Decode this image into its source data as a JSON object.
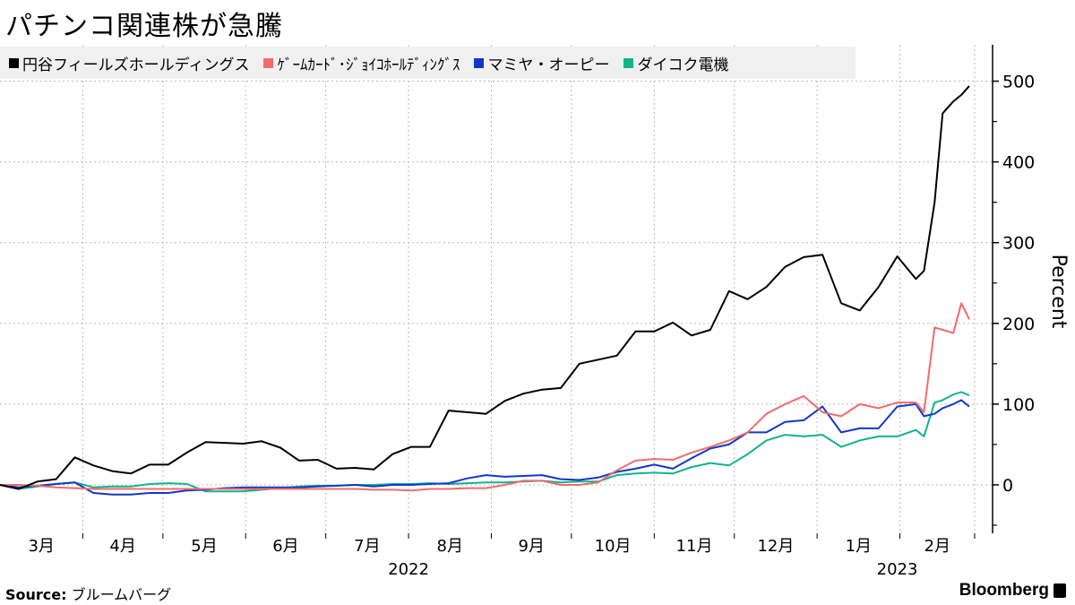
{
  "title": "パチンコ関連株が急騰",
  "source_label": "Source:",
  "source_text": "ブルームバーグ",
  "brand": "Bloomberg",
  "chart_data": {
    "type": "line",
    "title": "パチンコ関連株が急騰",
    "ylabel": "Percent",
    "ylim": [
      -60,
      545
    ],
    "yticks": [
      0,
      100,
      200,
      300,
      400,
      500
    ],
    "y_axis_side": "right",
    "grid": true,
    "legend_position": "top",
    "xlim": [
      "2022-03-01",
      "2023-03-01"
    ],
    "month_labels": [
      "3月",
      "4月",
      "5月",
      "6月",
      "7月",
      "8月",
      "9月",
      "10月",
      "11月",
      "12月",
      "1月",
      "2月"
    ],
    "year_labels": [
      "2022",
      "2023"
    ],
    "dates": [
      "2022-03-01",
      "2022-03-08",
      "2022-03-15",
      "2022-03-22",
      "2022-03-29",
      "2022-04-05",
      "2022-04-12",
      "2022-04-19",
      "2022-04-26",
      "2022-05-03",
      "2022-05-10",
      "2022-05-17",
      "2022-05-24",
      "2022-05-31",
      "2022-06-07",
      "2022-06-14",
      "2022-06-21",
      "2022-06-28",
      "2022-07-05",
      "2022-07-12",
      "2022-07-19",
      "2022-07-26",
      "2022-08-02",
      "2022-08-09",
      "2022-08-16",
      "2022-08-23",
      "2022-08-30",
      "2022-09-06",
      "2022-09-13",
      "2022-09-20",
      "2022-09-27",
      "2022-10-04",
      "2022-10-11",
      "2022-10-18",
      "2022-10-25",
      "2022-11-01",
      "2022-11-08",
      "2022-11-15",
      "2022-11-22",
      "2022-11-29",
      "2022-12-06",
      "2022-12-13",
      "2022-12-20",
      "2022-12-27",
      "2023-01-03",
      "2023-01-10",
      "2023-01-17",
      "2023-01-24",
      "2023-01-31",
      "2023-02-07",
      "2023-02-10",
      "2023-02-14",
      "2023-02-17",
      "2023-02-21",
      "2023-02-24",
      "2023-02-27"
    ],
    "series": [
      {
        "name": "円谷フィールズホールディングス",
        "color": "#000000",
        "values": [
          0,
          -5,
          4,
          7,
          34,
          24,
          17,
          14,
          25,
          25,
          40,
          53,
          52,
          51,
          54,
          46,
          30,
          31,
          20,
          21,
          19,
          38,
          47,
          47,
          92,
          90,
          88,
          104,
          113,
          118,
          120,
          150,
          155,
          160,
          190,
          190,
          201,
          185,
          192,
          240,
          230,
          245,
          270,
          282,
          285,
          225,
          216,
          245,
          283,
          255,
          265,
          350,
          460,
          475,
          483,
          494
        ]
      },
      {
        "name": "ｹﾞｰﾑｶｰﾄﾞ･ｼﾞｮｲｺﾎｰﾙﾃﾞｨﾝｸﾞｽ",
        "color": "#f26b6b",
        "values": [
          0,
          0,
          -1,
          -3,
          -4,
          -5,
          -5,
          -5,
          -5,
          -5,
          -5,
          -5,
          -5,
          -5,
          -5,
          -5,
          -5,
          -5,
          -5,
          -5,
          -6,
          -6,
          -7,
          -5,
          -5,
          -4,
          -4,
          0,
          5,
          5,
          0,
          0,
          3,
          18,
          30,
          32,
          31,
          40,
          47,
          55,
          65,
          88,
          100,
          110,
          90,
          85,
          100,
          95,
          102,
          102,
          90,
          195,
          192,
          188,
          225,
          205
        ]
      },
      {
        "name": "マミヤ・オーピー",
        "color": "#1237c8",
        "values": [
          0,
          -3,
          -1,
          1,
          3,
          -10,
          -12,
          -12,
          -10,
          -10,
          -7,
          -6,
          -4,
          -3,
          -3,
          -3,
          -3,
          -2,
          -1,
          0,
          -2,
          0,
          0,
          1,
          2,
          8,
          12,
          10,
          11,
          12,
          7,
          6,
          9,
          16,
          20,
          25,
          20,
          33,
          45,
          50,
          65,
          65,
          78,
          80,
          97,
          65,
          70,
          70,
          97,
          100,
          85,
          88,
          95,
          100,
          105,
          97
        ]
      },
      {
        "name": "ダイコク電機",
        "color": "#13b38c",
        "values": [
          0,
          -5,
          -2,
          1,
          3,
          -3,
          -2,
          -2,
          1,
          2,
          1,
          -8,
          -8,
          -8,
          -6,
          -4,
          -2,
          -1,
          -1,
          0,
          0,
          1,
          1,
          2,
          1,
          2,
          3,
          3,
          4,
          5,
          3,
          4,
          4,
          12,
          14,
          15,
          14,
          22,
          27,
          24,
          38,
          55,
          62,
          60,
          62,
          47,
          55,
          60,
          60,
          68,
          60,
          102,
          105,
          112,
          115,
          111
        ]
      }
    ]
  }
}
